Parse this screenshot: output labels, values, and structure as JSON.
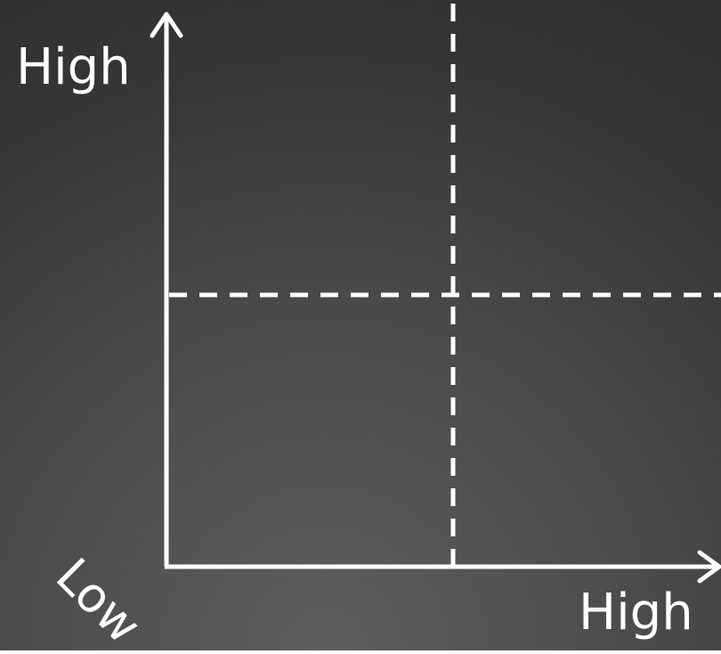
{
  "axes": {
    "y_axis_end_label": "High",
    "x_axis_end_label": "High",
    "origin_label": "Low"
  },
  "colors": {
    "background": "#3d3d3d",
    "lines": "#ffffff",
    "text": "#ffffff"
  },
  "quadrant_dividers": {
    "vertical_style": "dashed",
    "horizontal_style": "dashed"
  }
}
